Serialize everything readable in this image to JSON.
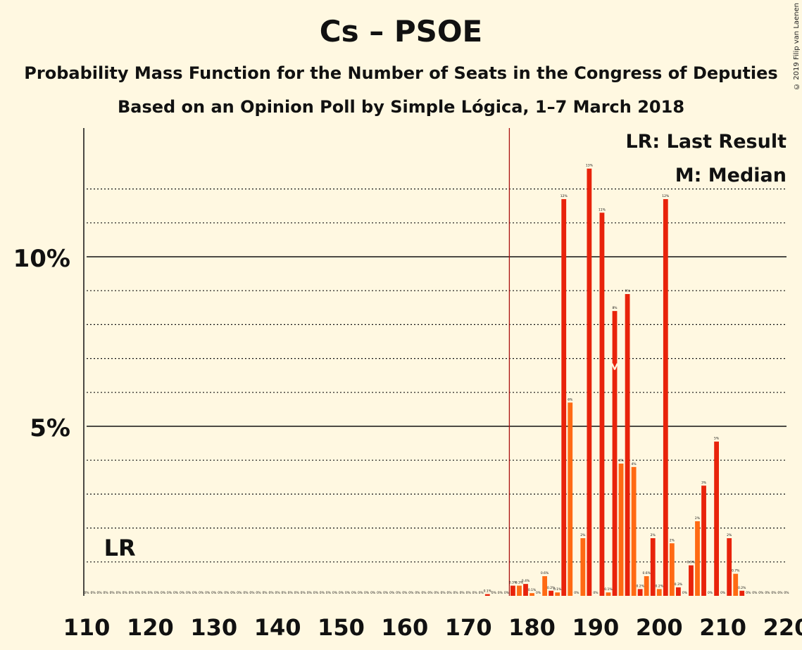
{
  "title": "Cs – PSOE",
  "subtitle1": "Probability Mass Function for the Number of Seats in the Congress of Deputies",
  "subtitle2": "Based on an Opinion Poll by Simple Lógica, 1–7 March 2018",
  "copyright": "© 2019 Filip van Laenen",
  "legend": {
    "lr": "LR: Last Result",
    "median": "M: Median"
  },
  "markers": {
    "lr_label": "LR",
    "lr_seats": 115,
    "median_label": "M",
    "median_seats": 193,
    "majority_seats": 176
  },
  "colors": {
    "dark_bar": "#e8230b",
    "light_bar": "#ff6a13",
    "majority_line": "#aa1111",
    "background": "#fff8e1"
  },
  "chart_data": {
    "type": "bar",
    "xlabel": "",
    "ylabel": "",
    "xlim": [
      110,
      220
    ],
    "ylim": [
      0,
      13.8
    ],
    "xticks": [
      110,
      120,
      130,
      140,
      150,
      160,
      170,
      180,
      190,
      200,
      210,
      220
    ],
    "yticks": [
      {
        "value": 5,
        "label": "5%"
      },
      {
        "value": 10,
        "label": "10%"
      }
    ],
    "grid": "dotted lines every 1%, solid at 5% and 10%",
    "bars": [
      {
        "seats": 110,
        "value": 0,
        "label": "0%"
      },
      {
        "seats": 111,
        "value": 0,
        "label": "0%"
      },
      {
        "seats": 112,
        "value": 0,
        "label": "0%"
      },
      {
        "seats": 113,
        "value": 0,
        "label": "0%"
      },
      {
        "seats": 114,
        "value": 0,
        "label": "0%"
      },
      {
        "seats": 115,
        "value": 0,
        "label": "0%"
      },
      {
        "seats": 116,
        "value": 0,
        "label": "0%"
      },
      {
        "seats": 117,
        "value": 0,
        "label": "0%"
      },
      {
        "seats": 118,
        "value": 0,
        "label": "0%"
      },
      {
        "seats": 119,
        "value": 0,
        "label": "0%"
      },
      {
        "seats": 120,
        "value": 0,
        "label": "0%"
      },
      {
        "seats": 121,
        "value": 0,
        "label": "0%"
      },
      {
        "seats": 122,
        "value": 0,
        "label": "0%"
      },
      {
        "seats": 123,
        "value": 0,
        "label": "0%"
      },
      {
        "seats": 124,
        "value": 0,
        "label": "0%"
      },
      {
        "seats": 125,
        "value": 0,
        "label": "0%"
      },
      {
        "seats": 126,
        "value": 0,
        "label": "0%"
      },
      {
        "seats": 127,
        "value": 0,
        "label": "0%"
      },
      {
        "seats": 128,
        "value": 0,
        "label": "0%"
      },
      {
        "seats": 129,
        "value": 0,
        "label": "0%"
      },
      {
        "seats": 130,
        "value": 0,
        "label": "0%"
      },
      {
        "seats": 131,
        "value": 0,
        "label": "0%"
      },
      {
        "seats": 132,
        "value": 0,
        "label": "0%"
      },
      {
        "seats": 133,
        "value": 0,
        "label": "0%"
      },
      {
        "seats": 134,
        "value": 0,
        "label": "0%"
      },
      {
        "seats": 135,
        "value": 0,
        "label": "0%"
      },
      {
        "seats": 136,
        "value": 0,
        "label": "0%"
      },
      {
        "seats": 137,
        "value": 0,
        "label": "0%"
      },
      {
        "seats": 138,
        "value": 0,
        "label": "0%"
      },
      {
        "seats": 139,
        "value": 0,
        "label": "0%"
      },
      {
        "seats": 140,
        "value": 0,
        "label": "0%"
      },
      {
        "seats": 141,
        "value": 0,
        "label": "0%"
      },
      {
        "seats": 142,
        "value": 0,
        "label": "0%"
      },
      {
        "seats": 143,
        "value": 0,
        "label": "0%"
      },
      {
        "seats": 144,
        "value": 0,
        "label": "0%"
      },
      {
        "seats": 145,
        "value": 0,
        "label": "0%"
      },
      {
        "seats": 146,
        "value": 0,
        "label": "0%"
      },
      {
        "seats": 147,
        "value": 0,
        "label": "0%"
      },
      {
        "seats": 148,
        "value": 0,
        "label": "0%"
      },
      {
        "seats": 149,
        "value": 0,
        "label": "0%"
      },
      {
        "seats": 150,
        "value": 0,
        "label": "0%"
      },
      {
        "seats": 151,
        "value": 0,
        "label": "0%"
      },
      {
        "seats": 152,
        "value": 0,
        "label": "0%"
      },
      {
        "seats": 153,
        "value": 0,
        "label": "0%"
      },
      {
        "seats": 154,
        "value": 0,
        "label": "0%"
      },
      {
        "seats": 155,
        "value": 0,
        "label": "0%"
      },
      {
        "seats": 156,
        "value": 0,
        "label": "0%"
      },
      {
        "seats": 157,
        "value": 0,
        "label": "0%"
      },
      {
        "seats": 158,
        "value": 0,
        "label": "0%"
      },
      {
        "seats": 159,
        "value": 0,
        "label": "0%"
      },
      {
        "seats": 160,
        "value": 0,
        "label": "0%"
      },
      {
        "seats": 161,
        "value": 0,
        "label": "0%"
      },
      {
        "seats": 162,
        "value": 0,
        "label": "0%"
      },
      {
        "seats": 163,
        "value": 0,
        "label": "0%"
      },
      {
        "seats": 164,
        "value": 0,
        "label": "0%"
      },
      {
        "seats": 165,
        "value": 0,
        "label": "0%"
      },
      {
        "seats": 166,
        "value": 0,
        "label": "0%"
      },
      {
        "seats": 167,
        "value": 0,
        "label": "0%"
      },
      {
        "seats": 168,
        "value": 0,
        "label": "0%"
      },
      {
        "seats": 169,
        "value": 0,
        "label": "0%"
      },
      {
        "seats": 170,
        "value": 0,
        "label": "0%"
      },
      {
        "seats": 171,
        "value": 0,
        "label": "0%"
      },
      {
        "seats": 172,
        "value": 0,
        "label": "0%"
      },
      {
        "seats": 173,
        "value": 0.05,
        "label": "0.1%"
      },
      {
        "seats": 174,
        "value": 0,
        "label": "0%"
      },
      {
        "seats": 175,
        "value": 0,
        "label": "0%"
      },
      {
        "seats": 176,
        "value": 0,
        "label": "0%"
      },
      {
        "seats": 177,
        "value": 0.3,
        "label": "0.3%"
      },
      {
        "seats": 178,
        "value": 0.3,
        "label": "0.3%"
      },
      {
        "seats": 179,
        "value": 0.35,
        "label": "0.4%"
      },
      {
        "seats": 180,
        "value": 0.08,
        "label": "0.1%"
      },
      {
        "seats": 181,
        "value": 0,
        "label": "0%"
      },
      {
        "seats": 182,
        "value": 0.58,
        "label": "0.6%"
      },
      {
        "seats": 183,
        "value": 0.15,
        "label": "0.2%"
      },
      {
        "seats": 184,
        "value": 0.1,
        "label": "0.1%"
      },
      {
        "seats": 185,
        "value": 11.7,
        "label": "12%"
      },
      {
        "seats": 186,
        "value": 5.7,
        "label": "6%"
      },
      {
        "seats": 187,
        "value": 0,
        "label": "0%"
      },
      {
        "seats": 188,
        "value": 1.7,
        "label": "2%"
      },
      {
        "seats": 189,
        "value": 12.6,
        "label": "13%"
      },
      {
        "seats": 190,
        "value": 0,
        "label": "0%"
      },
      {
        "seats": 191,
        "value": 11.3,
        "label": "11%"
      },
      {
        "seats": 192,
        "value": 0.1,
        "label": "0.1%"
      },
      {
        "seats": 193,
        "value": 8.4,
        "label": "8%"
      },
      {
        "seats": 194,
        "value": 3.9,
        "label": "4%"
      },
      {
        "seats": 195,
        "value": 8.9,
        "label": "9%"
      },
      {
        "seats": 196,
        "value": 3.8,
        "label": "4%"
      },
      {
        "seats": 197,
        "value": 0.2,
        "label": "0.2%"
      },
      {
        "seats": 198,
        "value": 0.58,
        "label": "0.6%"
      },
      {
        "seats": 199,
        "value": 1.7,
        "label": "2%"
      },
      {
        "seats": 200,
        "value": 0.2,
        "label": "0.2%"
      },
      {
        "seats": 201,
        "value": 11.7,
        "label": "12%"
      },
      {
        "seats": 202,
        "value": 1.55,
        "label": "2%"
      },
      {
        "seats": 203,
        "value": 0.25,
        "label": "0.3%"
      },
      {
        "seats": 204,
        "value": 0,
        "label": "0%"
      },
      {
        "seats": 205,
        "value": 0.9,
        "label": "0.9%"
      },
      {
        "seats": 206,
        "value": 2.2,
        "label": "2%"
      },
      {
        "seats": 207,
        "value": 3.25,
        "label": "3%"
      },
      {
        "seats": 208,
        "value": 0,
        "label": "0%"
      },
      {
        "seats": 209,
        "value": 4.55,
        "label": "5%"
      },
      {
        "seats": 210,
        "value": 0,
        "label": "0%"
      },
      {
        "seats": 211,
        "value": 1.7,
        "label": "2%"
      },
      {
        "seats": 212,
        "value": 0.65,
        "label": "0.7%"
      },
      {
        "seats": 213,
        "value": 0.15,
        "label": "0.2%"
      },
      {
        "seats": 214,
        "value": 0,
        "label": "0%"
      },
      {
        "seats": 215,
        "value": 0,
        "label": "0%"
      },
      {
        "seats": 216,
        "value": 0,
        "label": "0%"
      },
      {
        "seats": 217,
        "value": 0,
        "label": "0%"
      },
      {
        "seats": 218,
        "value": 0,
        "label": "0%"
      },
      {
        "seats": 219,
        "value": 0,
        "label": "0%"
      },
      {
        "seats": 220,
        "value": 0,
        "label": "0%"
      }
    ]
  }
}
